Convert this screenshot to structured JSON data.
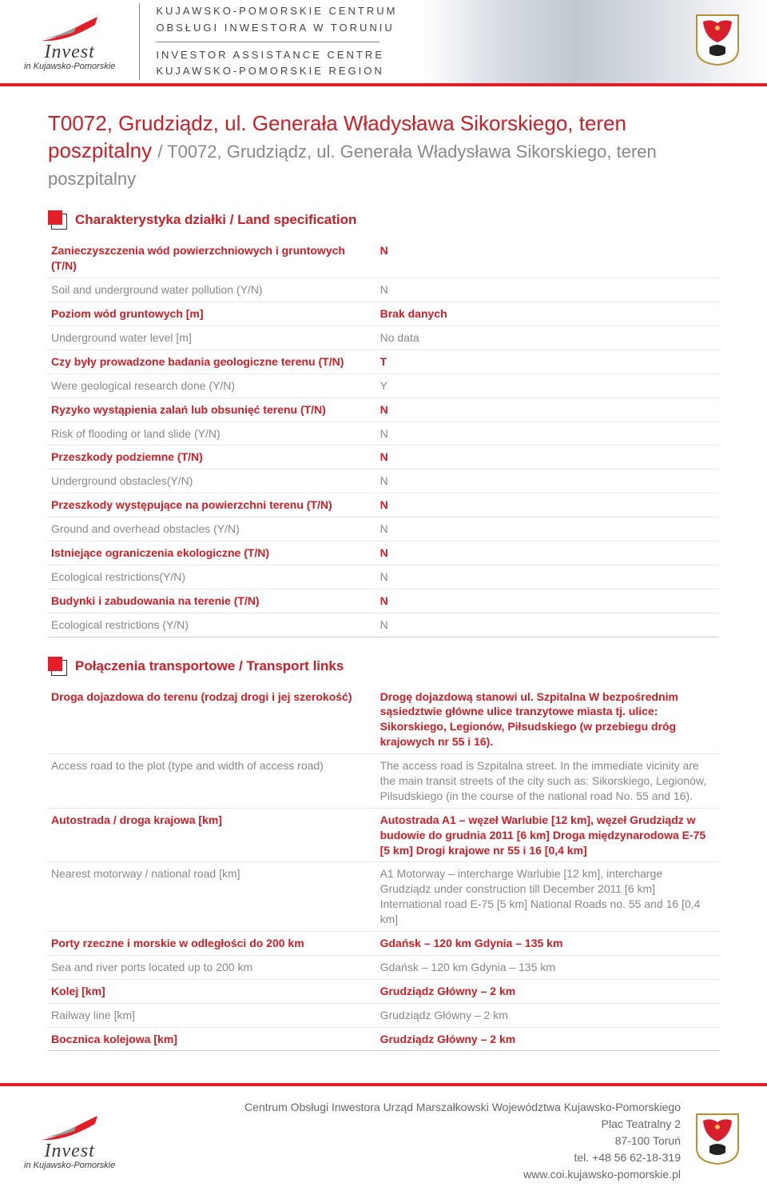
{
  "header": {
    "logo_main": "Invest",
    "logo_sub": "in Kujawsko-Pomorskie",
    "center_lines_top": [
      "KUJAWSKO-POMORSKIE CENTRUM",
      "OBSŁUGI INWESTORA  W TORUNIU"
    ],
    "center_lines_bottom": [
      "INVESTOR ASSISTANCE CENTRE",
      "KUJAWSKO-POMORSKIE REGION"
    ]
  },
  "title_pl": "T0072, Grudziądz, ul. Generała Władysława Sikorskiego, teren poszpitalny",
  "title_en": "/ T0072, Grudziądz, ul. Generała Władysława Sikorskiego, teren poszpitalny",
  "section1": {
    "title": "Charakterystyka działki / Land specification",
    "rows": [
      {
        "pl": "Zanieczyszczenia wód powierzchniowych i gruntowych (T/N)",
        "en": "Soil and underground water pollution (Y/N)",
        "vpl": "N",
        "ven": "N"
      },
      {
        "pl": "Poziom wód gruntowych [m]",
        "en": "Underground water level [m]",
        "vpl": "Brak danych",
        "ven": "No data"
      },
      {
        "pl": "Czy były prowadzone badania geologiczne terenu (T/N)",
        "en": "Were geological research done (Y/N)",
        "vpl": "T",
        "ven": "Y"
      },
      {
        "pl": "Ryzyko wystąpienia zalań lub obsunięć terenu (T/N)",
        "en": "Risk of flooding or land slide (Y/N)",
        "vpl": "N",
        "ven": "N"
      },
      {
        "pl": "Przeszkody podziemne (T/N)",
        "en": "Underground obstacles(Y/N)",
        "vpl": "N",
        "ven": "N"
      },
      {
        "pl": "Przeszkody występujące na powierzchni terenu (T/N)",
        "en": "Ground and overhead obstacles (Y/N)",
        "vpl": "N",
        "ven": "N"
      },
      {
        "pl": "Istniejące ograniczenia ekologiczne (T/N)",
        "en": "Ecological restrictions(Y/N)",
        "vpl": "N",
        "ven": "N"
      },
      {
        "pl": "Budynki i zabudowania na terenie (T/N)",
        "en": "Ecological restrictions (Y/N)",
        "vpl": "N",
        "ven": "N"
      }
    ]
  },
  "section2": {
    "title": "Połączenia transportowe / Transport links",
    "rows": [
      {
        "pl": "Droga dojazdowa do terenu (rodzaj drogi i jej szerokość)",
        "en": "Access road to the plot (type and width of access road)",
        "vpl": "Drogę dojazdową stanowi ul. Szpitalna W bezpośrednim sąsiedztwie główne ulice tranzytowe miasta tj. ulice: Sikorskiego, Legionów, Piłsudskiego (w przebiegu dróg krajowych nr 55 i 16).",
        "ven": "The access road is Szpitalna street. In the immediate vicinity are the main transit streets of the city such as: Sikorskiego, Legionów, Pilsudskiego (in the course of the national road No. 55 and 16)."
      },
      {
        "pl": "Autostrada / droga krajowa [km]",
        "en": "Nearest motorway / national road [km]",
        "vpl": "Autostrada A1 – węzeł Warlubie [12 km], węzeł Grudziądz w budowie do grudnia 2011 [6 km] Droga międzynarodowa E-75 [5 km] Drogi krajowe nr 55 i 16 [0,4 km]",
        "ven": "A1 Motorway – intercharge Warlubie [12 km], intercharge Grudziądz under construction till December 2011 [6 km] International road E-75 [5 km] National Roads no. 55 and 16 [0,4 km]"
      },
      {
        "pl": "Porty rzeczne i morskie w odległości do 200 km",
        "en": "Sea and river ports located up to 200 km",
        "vpl": "Gdańsk – 120 km Gdynia – 135 km",
        "ven": "Gdańsk – 120 km Gdynia – 135 km"
      },
      {
        "pl": "Kolej [km]",
        "en": "Railway line [km]",
        "vpl": "Grudziądz Główny – 2 km",
        "ven": "Grudziądz Główny – 2 km"
      },
      {
        "pl": "Bocznica kolejowa [km]",
        "en": "",
        "vpl": "Grudziądz Główny – 2 km",
        "ven": ""
      }
    ]
  },
  "footer": {
    "lines": [
      "Centrum Obsługi Inwestora Urząd Marszałkowski Województwa Kujawsko-Pomorskiego",
      "Plac Teatralny 2",
      "87-100 Toruń",
      "tel. +48 56 62-18-319",
      "www.coi.kujawsko-pomorskie.pl"
    ]
  },
  "colors": {
    "accent": "#cd1e25",
    "rule": "#e41e26",
    "muted": "#888"
  }
}
